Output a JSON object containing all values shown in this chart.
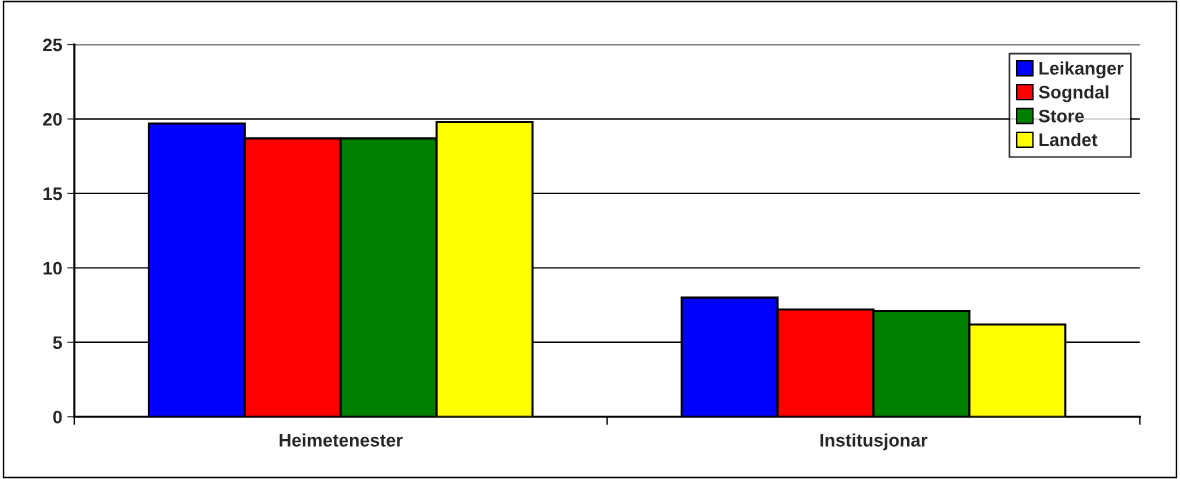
{
  "chart_data": {
    "type": "bar",
    "categories": [
      "Heimetenester",
      "Institusjonar"
    ],
    "series": [
      {
        "name": "Leikanger",
        "color": "#0000ff",
        "values": [
          19.7,
          8.0
        ]
      },
      {
        "name": "Sogndal",
        "color": "#ff0000",
        "values": [
          18.7,
          7.2
        ]
      },
      {
        "name": "Store",
        "color": "#008000",
        "values": [
          18.7,
          7.1
        ]
      },
      {
        "name": "Landet",
        "color": "#ffff00",
        "values": [
          19.8,
          6.2
        ]
      }
    ],
    "ylim": [
      0,
      25
    ],
    "yticks": [
      0,
      5,
      10,
      15,
      20,
      25
    ],
    "grid": "y",
    "legend": "top right"
  }
}
